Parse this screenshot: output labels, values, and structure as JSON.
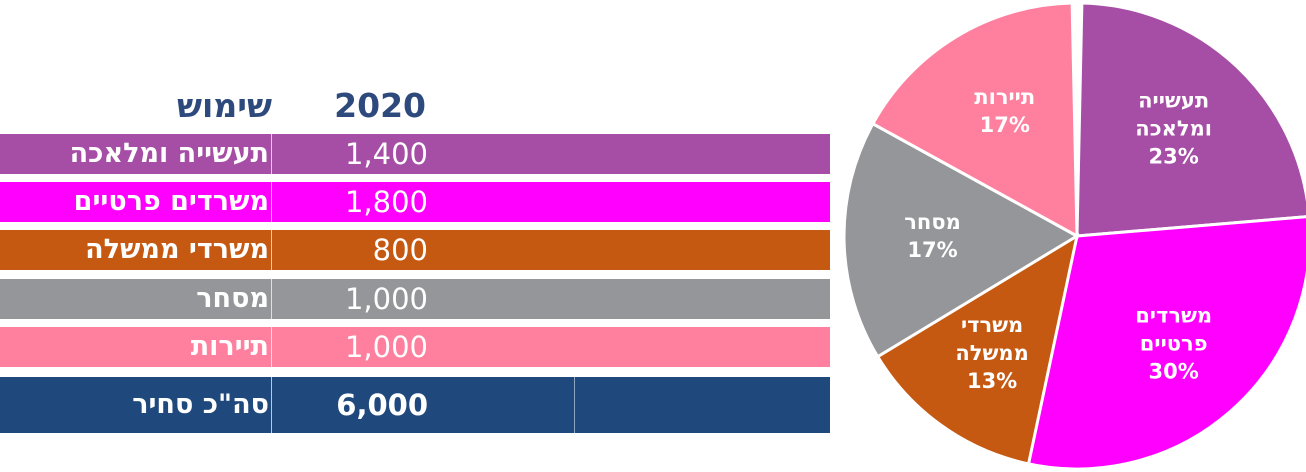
{
  "table": {
    "headers": {
      "year": "2020",
      "use": "שימוש"
    },
    "rows": [
      {
        "name": "תעשייה ומלאכה",
        "value": "1,400",
        "color": "#a64ea6"
      },
      {
        "name": "משרדים פרטיים",
        "value": "1,800",
        "color": "#ff00ff"
      },
      {
        "name": "משרדי ממשלה",
        "value": "800",
        "color": "#c65911"
      },
      {
        "name": "מסחר",
        "value": "1,000",
        "color": "#95969a"
      },
      {
        "name": "תיירות",
        "value": "1,000",
        "color": "#ff7f9e"
      }
    ],
    "total": {
      "name": "סה\"כ סחיר",
      "value": "6,000",
      "color": "#1f497d"
    }
  },
  "chart_data": {
    "type": "pie",
    "categories": [
      "תעשייה ומלאכה",
      "משרדים פרטיים",
      "משרדי ממשלה",
      "מסחר",
      "תיירות"
    ],
    "values": [
      1400,
      1800,
      800,
      1000,
      1000
    ],
    "slice_labels": [
      [
        "תעשייה",
        "ומלאכה",
        "23%"
      ],
      [
        "משרדים",
        "פרטיים",
        "30%"
      ],
      [
        "משרדי",
        "ממשלה",
        "13%"
      ],
      [
        "מסחר",
        "17%"
      ],
      [
        "תיירות",
        "17%"
      ]
    ],
    "colors": [
      "#a64ea6",
      "#ff00ff",
      "#c65911",
      "#95969a",
      "#ff7f9e"
    ]
  }
}
